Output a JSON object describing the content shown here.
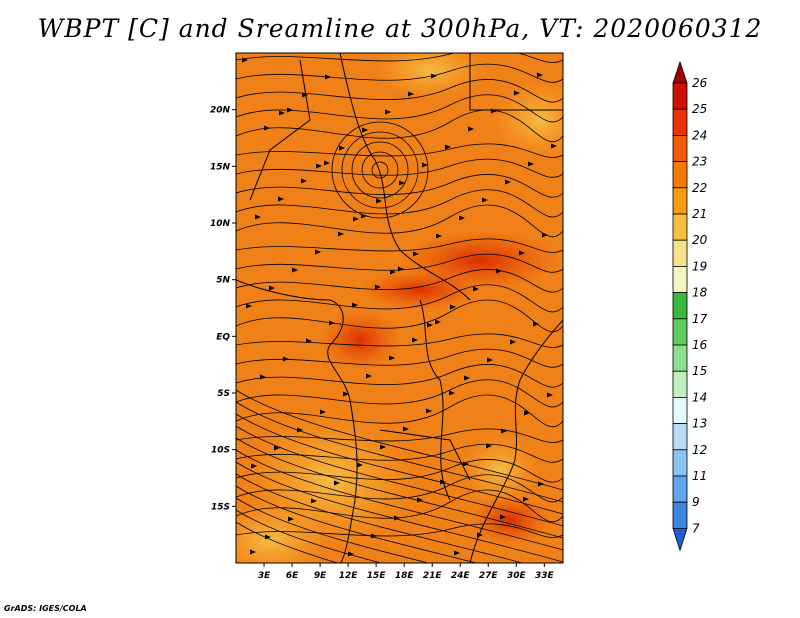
{
  "title": "WBPT [C] and Sreamline at 300hPa, VT: 2020060312",
  "credit": "GrADS: IGES/COLA",
  "map": {
    "lon_range": [
      0,
      35
    ],
    "lat_range": [
      -20,
      25
    ],
    "lon_ticks": [
      {
        "value": 3,
        "label": "3E"
      },
      {
        "value": 6,
        "label": "6E"
      },
      {
        "value": 9,
        "label": "9E"
      },
      {
        "value": 12,
        "label": "12E"
      },
      {
        "value": 15,
        "label": "15E"
      },
      {
        "value": 18,
        "label": "18E"
      },
      {
        "value": 21,
        "label": "21E"
      },
      {
        "value": 24,
        "label": "24E"
      },
      {
        "value": 27,
        "label": "27E"
      },
      {
        "value": 30,
        "label": "30E"
      },
      {
        "value": 33,
        "label": "33E"
      }
    ],
    "lat_ticks": [
      {
        "value": 20,
        "label": "20N"
      },
      {
        "value": 15,
        "label": "15N"
      },
      {
        "value": 10,
        "label": "10N"
      },
      {
        "value": 5,
        "label": "5N"
      },
      {
        "value": 0,
        "label": "EQ"
      },
      {
        "value": -5,
        "label": "5S"
      },
      {
        "value": -10,
        "label": "10S"
      },
      {
        "value": -15,
        "label": "15S"
      }
    ]
  },
  "colorbar": {
    "levels": [
      "26",
      "25",
      "24",
      "23",
      "22",
      "21",
      "20",
      "19",
      "18",
      "17",
      "16",
      "15",
      "14",
      "13",
      "12",
      "11",
      "9",
      "7"
    ],
    "colors": [
      "#a50000",
      "#cc1100",
      "#e63200",
      "#f05a00",
      "#f57a00",
      "#f79b10",
      "#f7be40",
      "#f9e38a",
      "#f5f5c0",
      "#3cb83c",
      "#60cc60",
      "#8ee08e",
      "#c0f0c0",
      "#e8f8ff",
      "#b8dcf8",
      "#8cc4f2",
      "#5fa6ec",
      "#3c86e0",
      "#1f60d0"
    ]
  },
  "palette": {
    "coast": "#000000",
    "streamline": "#000000"
  }
}
